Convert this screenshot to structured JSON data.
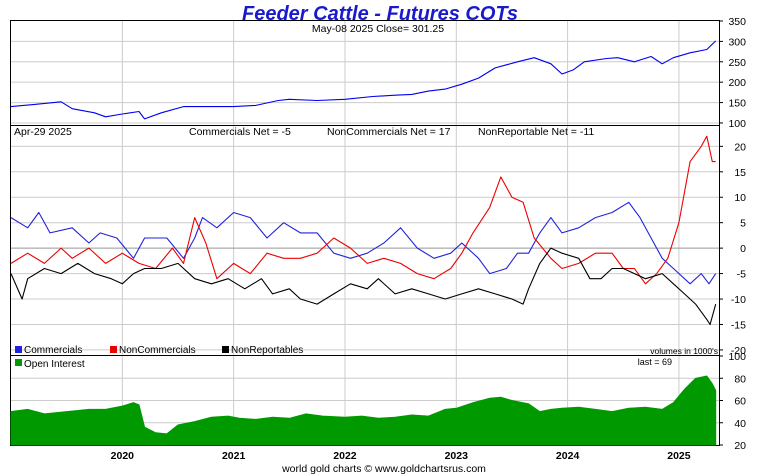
{
  "title": "Feeder Cattle - Futures COTs",
  "footer": "world gold charts © www.goldchartsrus.com",
  "colors": {
    "title": "#1a1acc",
    "price": "#0000ee",
    "commercials": "#2222dd",
    "noncommercials": "#ee0000",
    "nonreportables": "#000000",
    "open_interest": "#009900",
    "grid": "#cccccc",
    "zero_line": "#999999"
  },
  "price_panel": {
    "header": "May-08  2025   Close= 301.25"
  },
  "cot_panel": {
    "date": "Apr-29  2025",
    "commercials_net": "Commercials Net = -5",
    "noncommercials_net": "NonCommercials Net = 17",
    "nonreportable_net": "NonReportable Net = -11",
    "legend_commercials": "Commercials",
    "legend_noncommercials": "NonCommercials",
    "legend_nonreportables": "NonReportables",
    "volumes_note": "volumes in 1000's"
  },
  "oi_panel": {
    "legend": "Open Interest",
    "last": "last = 69"
  },
  "chart_data": [
    {
      "type": "line",
      "title": "Feeder Cattle - Futures COTs",
      "series": [
        {
          "name": "Close",
          "points": [
            [
              2019.0,
              140
            ],
            [
              2019.2,
              145
            ],
            [
              2019.45,
              152
            ],
            [
              2019.55,
              135
            ],
            [
              2019.75,
              125
            ],
            [
              2019.85,
              115
            ],
            [
              2020.0,
              122
            ],
            [
              2020.15,
              128
            ],
            [
              2020.2,
              110
            ],
            [
              2020.35,
              125
            ],
            [
              2020.55,
              140
            ],
            [
              2020.75,
              140
            ],
            [
              2021.0,
              140
            ],
            [
              2021.2,
              143
            ],
            [
              2021.4,
              155
            ],
            [
              2021.5,
              158
            ],
            [
              2021.75,
              155
            ],
            [
              2022.0,
              158
            ],
            [
              2022.25,
              165
            ],
            [
              2022.45,
              168
            ],
            [
              2022.6,
              170
            ],
            [
              2022.75,
              178
            ],
            [
              2022.9,
              183
            ],
            [
              2023.05,
              195
            ],
            [
              2023.2,
              210
            ],
            [
              2023.35,
              235
            ],
            [
              2023.55,
              250
            ],
            [
              2023.7,
              260
            ],
            [
              2023.85,
              245
            ],
            [
              2023.95,
              220
            ],
            [
              2024.05,
              230
            ],
            [
              2024.15,
              250
            ],
            [
              2024.35,
              258
            ],
            [
              2024.45,
              260
            ],
            [
              2024.6,
              250
            ],
            [
              2024.75,
              263
            ],
            [
              2024.85,
              245
            ],
            [
              2024.95,
              260
            ],
            [
              2025.1,
              272
            ],
            [
              2025.25,
              280
            ],
            [
              2025.33,
              301.25
            ]
          ]
        }
      ],
      "ylim": [
        95,
        350
      ],
      "yticks": [
        100,
        150,
        200,
        250,
        300,
        350
      ],
      "grid": true
    },
    {
      "type": "line",
      "title": "",
      "series": [
        {
          "name": "Commercials",
          "points": [
            [
              2019.0,
              6
            ],
            [
              2019.15,
              4
            ],
            [
              2019.25,
              7
            ],
            [
              2019.35,
              3
            ],
            [
              2019.55,
              4
            ],
            [
              2019.7,
              1
            ],
            [
              2019.8,
              3
            ],
            [
              2019.95,
              2
            ],
            [
              2020.1,
              -2
            ],
            [
              2020.2,
              2
            ],
            [
              2020.4,
              2
            ],
            [
              2020.55,
              -2
            ],
            [
              2020.65,
              2
            ],
            [
              2020.72,
              6
            ],
            [
              2020.85,
              4
            ],
            [
              2021.0,
              7
            ],
            [
              2021.15,
              6
            ],
            [
              2021.3,
              2
            ],
            [
              2021.45,
              5
            ],
            [
              2021.6,
              3
            ],
            [
              2021.75,
              3
            ],
            [
              2021.9,
              -1
            ],
            [
              2022.05,
              -2
            ],
            [
              2022.2,
              -1
            ],
            [
              2022.35,
              1
            ],
            [
              2022.5,
              4
            ],
            [
              2022.65,
              0
            ],
            [
              2022.8,
              -2
            ],
            [
              2022.95,
              -1
            ],
            [
              2023.05,
              1
            ],
            [
              2023.2,
              -2
            ],
            [
              2023.3,
              -5
            ],
            [
              2023.45,
              -4
            ],
            [
              2023.55,
              -1
            ],
            [
              2023.65,
              -1
            ],
            [
              2023.75,
              3
            ],
            [
              2023.85,
              6
            ],
            [
              2023.95,
              3
            ],
            [
              2024.1,
              4
            ],
            [
              2024.25,
              6
            ],
            [
              2024.4,
              7
            ],
            [
              2024.55,
              9
            ],
            [
              2024.65,
              6
            ],
            [
              2024.75,
              2
            ],
            [
              2024.85,
              -2
            ],
            [
              2024.95,
              -4
            ],
            [
              2025.1,
              -7
            ],
            [
              2025.2,
              -5
            ],
            [
              2025.27,
              -7
            ],
            [
              2025.33,
              -5
            ]
          ]
        },
        {
          "name": "NonCommercials",
          "points": [
            [
              2019.0,
              -3
            ],
            [
              2019.15,
              -1
            ],
            [
              2019.3,
              -3
            ],
            [
              2019.45,
              0
            ],
            [
              2019.55,
              -2
            ],
            [
              2019.7,
              0
            ],
            [
              2019.85,
              -3
            ],
            [
              2020.0,
              -1
            ],
            [
              2020.15,
              -3
            ],
            [
              2020.3,
              -4
            ],
            [
              2020.45,
              0
            ],
            [
              2020.55,
              -3
            ],
            [
              2020.65,
              6
            ],
            [
              2020.75,
              1
            ],
            [
              2020.85,
              -6
            ],
            [
              2021.0,
              -3
            ],
            [
              2021.15,
              -5
            ],
            [
              2021.3,
              -1
            ],
            [
              2021.45,
              -2
            ],
            [
              2021.6,
              -2
            ],
            [
              2021.75,
              -1
            ],
            [
              2021.9,
              2
            ],
            [
              2022.05,
              0
            ],
            [
              2022.2,
              -3
            ],
            [
              2022.35,
              -2
            ],
            [
              2022.5,
              -3
            ],
            [
              2022.65,
              -5
            ],
            [
              2022.8,
              -6
            ],
            [
              2022.95,
              -4
            ],
            [
              2023.05,
              -1
            ],
            [
              2023.15,
              3
            ],
            [
              2023.3,
              8
            ],
            [
              2023.4,
              14
            ],
            [
              2023.5,
              10
            ],
            [
              2023.6,
              9
            ],
            [
              2023.7,
              2
            ],
            [
              2023.85,
              -2
            ],
            [
              2023.95,
              -4
            ],
            [
              2024.1,
              -3
            ],
            [
              2024.25,
              -1
            ],
            [
              2024.4,
              -1
            ],
            [
              2024.5,
              -4
            ],
            [
              2024.6,
              -4
            ],
            [
              2024.7,
              -7
            ],
            [
              2024.8,
              -5
            ],
            [
              2024.9,
              -2
            ],
            [
              2025.0,
              5
            ],
            [
              2025.1,
              17
            ],
            [
              2025.2,
              20
            ],
            [
              2025.25,
              22
            ],
            [
              2025.3,
              17
            ],
            [
              2025.33,
              17
            ]
          ]
        },
        {
          "name": "NonReportables",
          "points": [
            [
              2019.0,
              -5
            ],
            [
              2019.1,
              -10
            ],
            [
              2019.15,
              -6
            ],
            [
              2019.3,
              -4
            ],
            [
              2019.45,
              -5
            ],
            [
              2019.6,
              -3
            ],
            [
              2019.75,
              -5
            ],
            [
              2019.9,
              -6
            ],
            [
              2020.0,
              -7
            ],
            [
              2020.1,
              -5
            ],
            [
              2020.2,
              -4
            ],
            [
              2020.35,
              -4
            ],
            [
              2020.5,
              -3
            ],
            [
              2020.65,
              -6
            ],
            [
              2020.8,
              -7
            ],
            [
              2020.95,
              -6
            ],
            [
              2021.1,
              -8
            ],
            [
              2021.25,
              -6
            ],
            [
              2021.35,
              -9
            ],
            [
              2021.5,
              -8
            ],
            [
              2021.6,
              -10
            ],
            [
              2021.75,
              -11
            ],
            [
              2021.9,
              -9
            ],
            [
              2022.05,
              -7
            ],
            [
              2022.2,
              -8
            ],
            [
              2022.3,
              -6
            ],
            [
              2022.45,
              -9
            ],
            [
              2022.6,
              -8
            ],
            [
              2022.75,
              -9
            ],
            [
              2022.9,
              -10
            ],
            [
              2023.05,
              -9
            ],
            [
              2023.2,
              -8
            ],
            [
              2023.35,
              -9
            ],
            [
              2023.5,
              -10
            ],
            [
              2023.6,
              -11
            ],
            [
              2023.65,
              -8
            ],
            [
              2023.75,
              -3
            ],
            [
              2023.85,
              0
            ],
            [
              2023.95,
              -1
            ],
            [
              2024.1,
              -2
            ],
            [
              2024.2,
              -6
            ],
            [
              2024.3,
              -6
            ],
            [
              2024.4,
              -4
            ],
            [
              2024.5,
              -4
            ],
            [
              2024.6,
              -5
            ],
            [
              2024.7,
              -6
            ],
            [
              2024.85,
              -5
            ],
            [
              2024.95,
              -7
            ],
            [
              2025.05,
              -9
            ],
            [
              2025.15,
              -11
            ],
            [
              2025.25,
              -14
            ],
            [
              2025.28,
              -15
            ],
            [
              2025.33,
              -11
            ]
          ]
        }
      ],
      "ylim": [
        -21,
        24
      ],
      "yticks": [
        -20,
        -15,
        -10,
        -5,
        0,
        5,
        10,
        15,
        20
      ],
      "grid": true
    },
    {
      "type": "area",
      "title": "",
      "series": [
        {
          "name": "Open Interest",
          "points": [
            [
              2019.0,
              50
            ],
            [
              2019.15,
              52
            ],
            [
              2019.3,
              48
            ],
            [
              2019.5,
              50
            ],
            [
              2019.7,
              52
            ],
            [
              2019.85,
              52
            ],
            [
              2020.0,
              55
            ],
            [
              2020.1,
              58
            ],
            [
              2020.15,
              56
            ],
            [
              2020.2,
              36
            ],
            [
              2020.3,
              31
            ],
            [
              2020.4,
              30
            ],
            [
              2020.5,
              38
            ],
            [
              2020.65,
              41
            ],
            [
              2020.8,
              45
            ],
            [
              2020.95,
              46
            ],
            [
              2021.05,
              44
            ],
            [
              2021.2,
              43
            ],
            [
              2021.35,
              45
            ],
            [
              2021.5,
              44
            ],
            [
              2021.65,
              48
            ],
            [
              2021.8,
              46
            ],
            [
              2022.0,
              45
            ],
            [
              2022.15,
              46
            ],
            [
              2022.3,
              44
            ],
            [
              2022.45,
              45
            ],
            [
              2022.6,
              47
            ],
            [
              2022.75,
              46
            ],
            [
              2022.9,
              52
            ],
            [
              2023.0,
              53
            ],
            [
              2023.15,
              58
            ],
            [
              2023.3,
              62
            ],
            [
              2023.4,
              63
            ],
            [
              2023.5,
              60
            ],
            [
              2023.65,
              57
            ],
            [
              2023.75,
              50
            ],
            [
              2023.85,
              52
            ],
            [
              2023.95,
              53
            ],
            [
              2024.1,
              54
            ],
            [
              2024.25,
              52
            ],
            [
              2024.4,
              50
            ],
            [
              2024.55,
              53
            ],
            [
              2024.7,
              54
            ],
            [
              2024.85,
              52
            ],
            [
              2024.95,
              58
            ],
            [
              2025.05,
              70
            ],
            [
              2025.15,
              80
            ],
            [
              2025.25,
              82
            ],
            [
              2025.3,
              75
            ],
            [
              2025.33,
              69
            ]
          ]
        }
      ],
      "ylim": [
        20,
        100
      ],
      "yticks": [
        20,
        40,
        60,
        80,
        100
      ],
      "grid": true
    }
  ],
  "x_axis": {
    "ticks": [
      "2020",
      "2021",
      "2022",
      "2023",
      "2024",
      "2025"
    ],
    "range": [
      2019.0,
      2025.36
    ]
  }
}
